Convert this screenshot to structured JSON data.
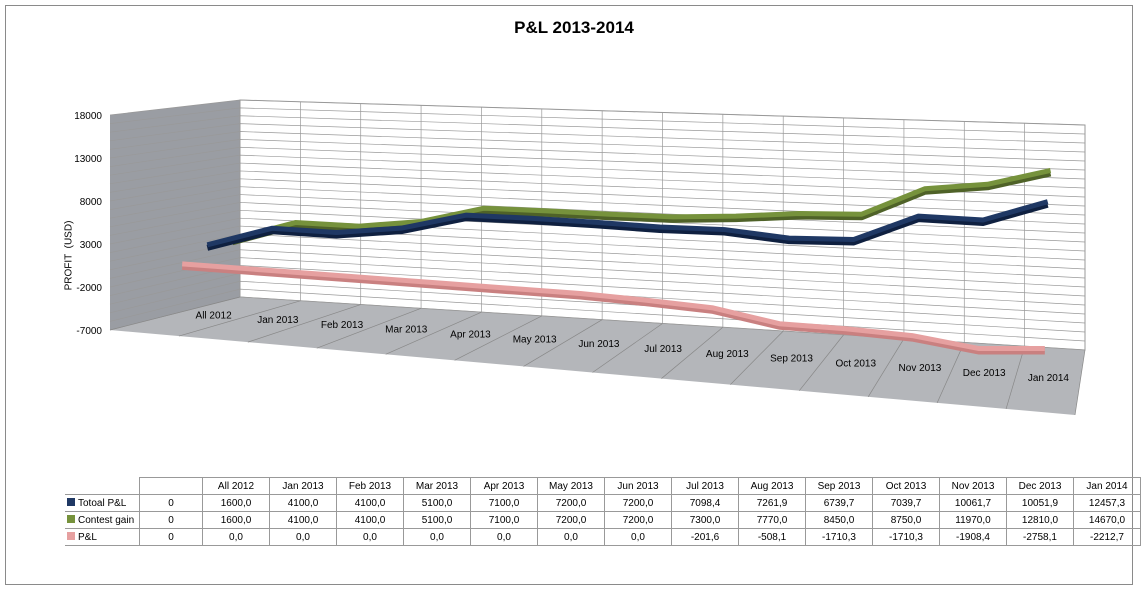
{
  "chart_data": {
    "type": "line",
    "title": "P&L 2013-2014",
    "ylabel": "PROFIT  (USD)",
    "xlabel": "",
    "ylim": [
      -7000,
      18000
    ],
    "yticks": [
      "18000",
      "13000",
      "8000",
      "3000",
      "-2000",
      "-7000"
    ],
    "grid": true,
    "legend": "table-bottom",
    "categories": [
      "All 2012",
      "Jan 2013",
      "Feb 2013",
      "Mar 2013",
      "Apr 2013",
      "May 2013",
      "Jun 2013",
      "Jul 2013",
      "Aug 2013",
      "Sep 2013",
      "Oct 2013",
      "Nov 2013",
      "Dec 2013",
      "Jan 2014"
    ],
    "table_first_column": "0",
    "series": [
      {
        "name": "Totoal P&L",
        "color": "#1f3864",
        "values": [
          1600,
          4100,
          4100,
          5100,
          7100,
          7200,
          7200,
          7098.4,
          7261.9,
          6739.7,
          7039.7,
          10061.7,
          10051.9,
          12457.3
        ],
        "labels": [
          "1600,0",
          "4100,0",
          "4100,0",
          "5100,0",
          "7100,0",
          "7200,0",
          "7200,0",
          "7098,4",
          "7261,9",
          "6739,7",
          "7039,7",
          "10061,7",
          "10051,9",
          "12457,3"
        ]
      },
      {
        "name": "Contest gain",
        "color": "#76923c",
        "values": [
          1600,
          4100,
          4100,
          5100,
          7100,
          7200,
          7200,
          7300,
          7770,
          8450,
          8750,
          11970,
          12810,
          14670
        ],
        "labels": [
          "1600,0",
          "4100,0",
          "4100,0",
          "5100,0",
          "7100,0",
          "7200,0",
          "7200,0",
          "7300,0",
          "7770,0",
          "8450,0",
          "8750,0",
          "11970,0",
          "12810,0",
          "14670,0"
        ]
      },
      {
        "name": "P&L",
        "color": "#e6a0a0",
        "values": [
          0,
          0,
          0,
          0,
          0,
          0,
          0,
          -201.6,
          -508.1,
          -1710.3,
          -1710.3,
          -1908.4,
          -2758.1,
          -2212.7
        ],
        "labels": [
          "0,0",
          "0,0",
          "0,0",
          "0,0",
          "0,0",
          "0,0",
          "0,0",
          "-201,6",
          "-508,1",
          "-1710,3",
          "-1710,3",
          "-1908,4",
          "-2758,1",
          "-2212,7"
        ]
      }
    ]
  }
}
